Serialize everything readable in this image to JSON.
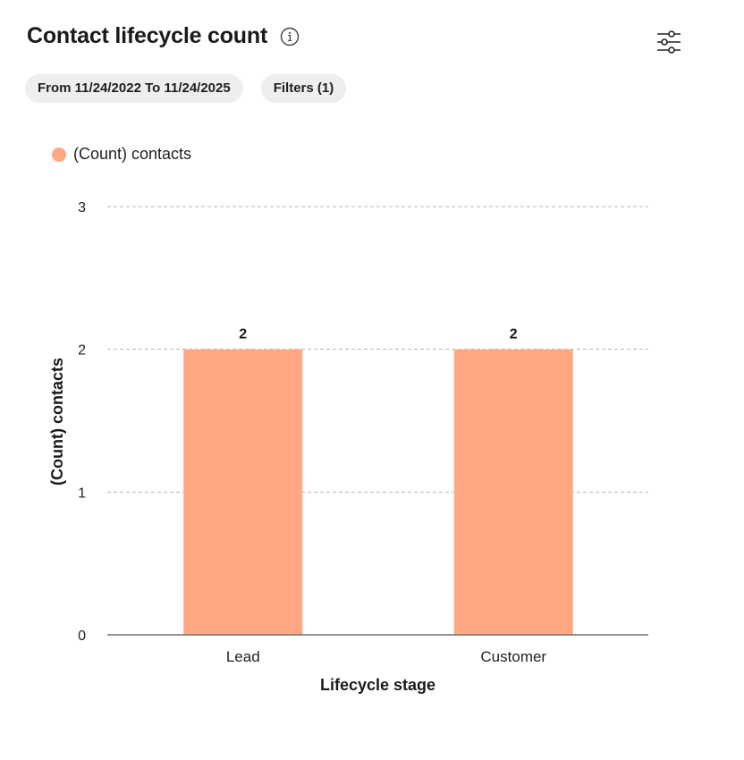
{
  "header": {
    "title": "Contact lifecycle count",
    "info_icon": "info-icon",
    "settings_icon": "sliders-icon"
  },
  "filters": {
    "date_range": "From 11/24/2022 To 11/24/2025",
    "filters_label": "Filters (1)"
  },
  "legend": {
    "label": "(Count) contacts",
    "color": "#ffa882"
  },
  "chart_data": {
    "type": "bar",
    "title": "Contact lifecycle count",
    "xlabel": "Lifecycle stage",
    "ylabel": "(Count) contacts",
    "categories": [
      "Lead",
      "Customer"
    ],
    "series": [
      {
        "name": "(Count) contacts",
        "values": [
          2,
          2
        ],
        "color": "#ffa882"
      }
    ],
    "ylim": [
      0,
      3
    ],
    "yticks": [
      0,
      1,
      2,
      3
    ],
    "data_labels": [
      "2",
      "2"
    ],
    "grid": true,
    "legend_position": "top-left"
  }
}
